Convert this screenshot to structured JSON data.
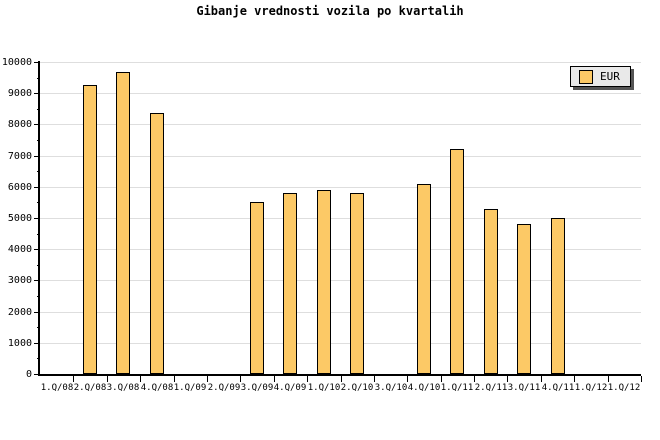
{
  "title": "Gibanje vrednosti vozila po kvartalih",
  "legend": {
    "label": "EUR",
    "swatch_color": "#FCC966",
    "position": "top-right"
  },
  "colors": {
    "background": "#FFFFFF",
    "bar_fill": "#FCC966",
    "bar_border": "#000000",
    "gridline": "#DEDEDE",
    "axis": "#000000",
    "legend_background": "#E9E9E9",
    "legend_shadow": "#555555",
    "text": "#000000"
  },
  "chart_data": {
    "type": "bar",
    "title": "Gibanje vrednosti vozila po kvartalih",
    "xlabel": "",
    "ylabel": "",
    "categories": [
      "1.Q/08",
      "2.Q/08",
      "3.Q/08",
      "4.Q/08",
      "1.Q/09",
      "2.Q/09",
      "3.Q/09",
      "4.Q/09",
      "1.Q/10",
      "2.Q/10",
      "3.Q/10",
      "4.Q/10",
      "1.Q/11",
      "2.Q/11",
      "3.Q/11",
      "4.Q/11",
      "1.Q/12",
      "1.Q/12"
    ],
    "series": [
      {
        "name": "EUR",
        "values": [
          null,
          9270,
          9680,
          8350,
          null,
          null,
          5500,
          5800,
          5900,
          5800,
          null,
          6100,
          7200,
          5280,
          4800,
          5000,
          null,
          null
        ]
      }
    ],
    "ylim": [
      0,
      10000
    ],
    "yticks": [
      0,
      1000,
      2000,
      3000,
      4000,
      5000,
      6000,
      7000,
      8000,
      9000,
      10000
    ],
    "ytick_minor_step": 500,
    "grid": "horizontal-major",
    "legend_position": "top-right"
  }
}
